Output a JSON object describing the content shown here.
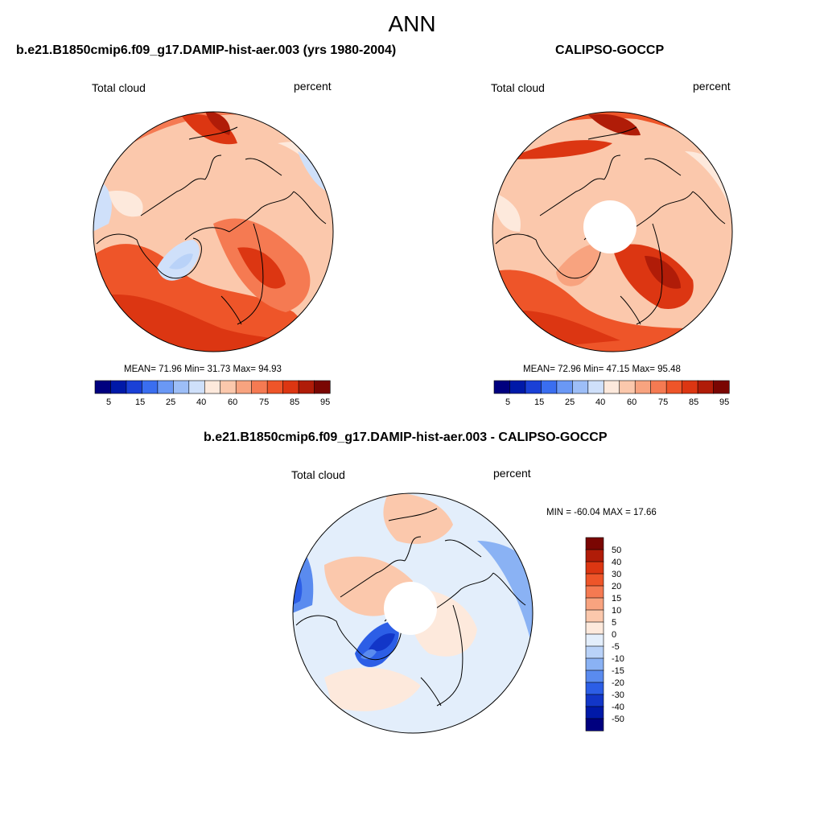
{
  "main_title": "ANN",
  "panels": {
    "model": {
      "title": "b.e21.B1850cmip6.f09_g17.DAMIP-hist-aer.003 (yrs 1980-2004)",
      "var_label": "Total cloud",
      "units": "percent",
      "stats": "MEAN=  71.96  Min=  31.73  Max=  94.93",
      "pole_hole": false
    },
    "obs": {
      "title": "CALIPSO-GOCCP",
      "var_label": "Total cloud",
      "units": "percent",
      "stats": "MEAN=  72.96  Min=  47.15  Max=  95.48",
      "pole_hole": true
    },
    "diff": {
      "title": "b.e21.B1850cmip6.f09_g17.DAMIP-hist-aer.003 - CALIPSO-GOCCP",
      "var_label": "Total cloud",
      "units": "percent",
      "stats": "MIN = -60.04 MAX =  17.66",
      "pole_hole": true
    }
  },
  "colorbar_abs": {
    "tick_labels": [
      "5",
      "15",
      "25",
      "40",
      "60",
      "75",
      "85",
      "95"
    ],
    "colors": [
      "#00007f",
      "#0019a8",
      "#1a40d6",
      "#3a6ef0",
      "#6a98f5",
      "#9dbef7",
      "#cfe0fa",
      "#fde9dc",
      "#fbc8ac",
      "#f8a37f",
      "#f57a52",
      "#ee5529",
      "#dc3612",
      "#b01c08",
      "#7a0602"
    ]
  },
  "colorbar_diff": {
    "tick_labels": [
      "50",
      "40",
      "30",
      "20",
      "15",
      "10",
      "5",
      "0",
      "-5",
      "-10",
      "-15",
      "-20",
      "-30",
      "-40",
      "-50"
    ],
    "colors": [
      "#7a0602",
      "#b01c08",
      "#dc3612",
      "#ee5529",
      "#f57a52",
      "#f8a37f",
      "#fbc8ac",
      "#fde9dc",
      "#e3eefb",
      "#b9d2f8",
      "#8ab2f4",
      "#5a8bef",
      "#2c5ee6",
      "#1236c8",
      "#0019a8",
      "#00007f"
    ]
  }
}
